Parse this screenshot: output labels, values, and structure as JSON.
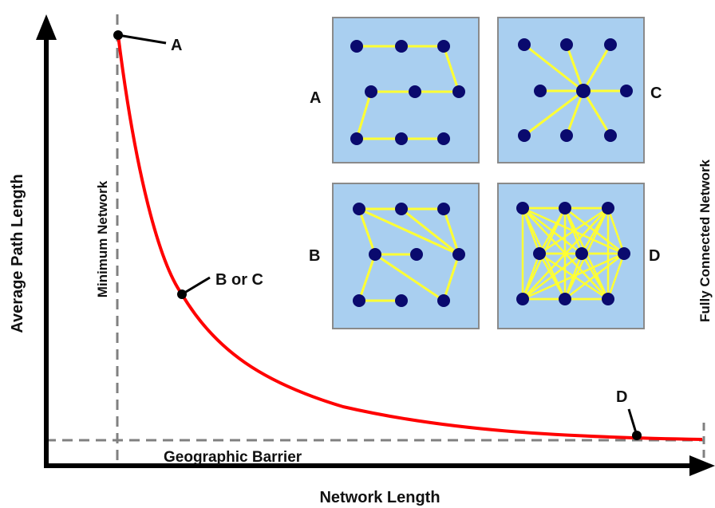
{
  "axes": {
    "x_label": "Network Length",
    "y_label": "Average Path Length"
  },
  "guides": {
    "minimum": "Minimum Network",
    "barrier": "Geographic Barrier",
    "fully_connected": "Fully Connected Network"
  },
  "curve_points": {
    "a": "A",
    "bc": "B or C",
    "d": "D"
  },
  "panels": {
    "a": "A",
    "b": "B",
    "c": "C",
    "d": "D"
  },
  "colors": {
    "curve": "#ff0000",
    "panel_bg": "#a9cff0",
    "panel_border": "#8a8a8a",
    "edge": "#ffff33",
    "node": "#0a0a6e",
    "guide": "#808080",
    "axis": "#000000"
  }
}
